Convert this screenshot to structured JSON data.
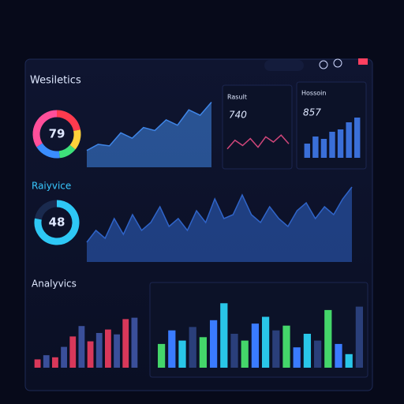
{
  "header": {
    "title": "Wesiletics"
  },
  "sections": [
    "Raiyvice",
    "Analyvics"
  ],
  "chart_data": [
    {
      "type": "donut",
      "center_value": 79,
      "values": [
        22,
        14,
        12,
        18,
        34
      ],
      "colors": [
        "#ff3b4e",
        "#ffd23a",
        "#3ee07a",
        "#3a8dff",
        "#ff4f9a"
      ]
    },
    {
      "type": "area",
      "values": [
        22,
        30,
        28,
        45,
        38,
        52,
        48,
        62,
        55,
        75,
        68,
        85
      ],
      "ylim": [
        0,
        100
      ],
      "color": "#3f86e8"
    },
    {
      "type": "line",
      "title": "Rasult",
      "headline": 740,
      "values": [
        30,
        55,
        40,
        60,
        35,
        65,
        50,
        70,
        45
      ],
      "ylim": [
        0,
        100
      ],
      "color": "#d0467a"
    },
    {
      "type": "bar",
      "title": "Hossoin",
      "headline": 857,
      "values": [
        30,
        45,
        40,
        55,
        60,
        75,
        85
      ],
      "ylim": [
        0,
        100
      ],
      "colors": [
        "#3a6fd8"
      ]
    },
    {
      "type": "donut",
      "center_value": 48,
      "values": [
        78,
        22
      ],
      "colors": [
        "#2ec8f5",
        "#1a2a4e"
      ]
    },
    {
      "type": "area",
      "values": [
        25,
        40,
        30,
        55,
        35,
        60,
        40,
        50,
        70,
        45,
        55,
        40,
        65,
        50,
        80,
        55,
        60,
        85,
        60,
        50,
        70,
        55,
        45,
        65,
        75,
        55,
        70,
        60,
        80,
        95
      ],
      "ylim": [
        0,
        100
      ],
      "color": "#2f64c8"
    },
    {
      "type": "bar",
      "values": [
        12,
        18,
        15,
        30,
        45,
        60,
        38,
        50,
        55,
        48,
        70,
        72
      ],
      "ylim": [
        0,
        100
      ],
      "colors": [
        "#d8385a",
        "#3a4f9a"
      ]
    },
    {
      "type": "bar",
      "values": [
        35,
        55,
        40,
        60,
        45,
        70,
        95,
        50,
        40,
        65,
        75,
        55,
        62,
        30,
        50,
        40,
        85,
        35,
        20,
        90
      ],
      "ylim": [
        0,
        100
      ],
      "colors": [
        "#44d66a",
        "#3a7bff",
        "#29c6e8",
        "#2a3f7a"
      ]
    }
  ]
}
